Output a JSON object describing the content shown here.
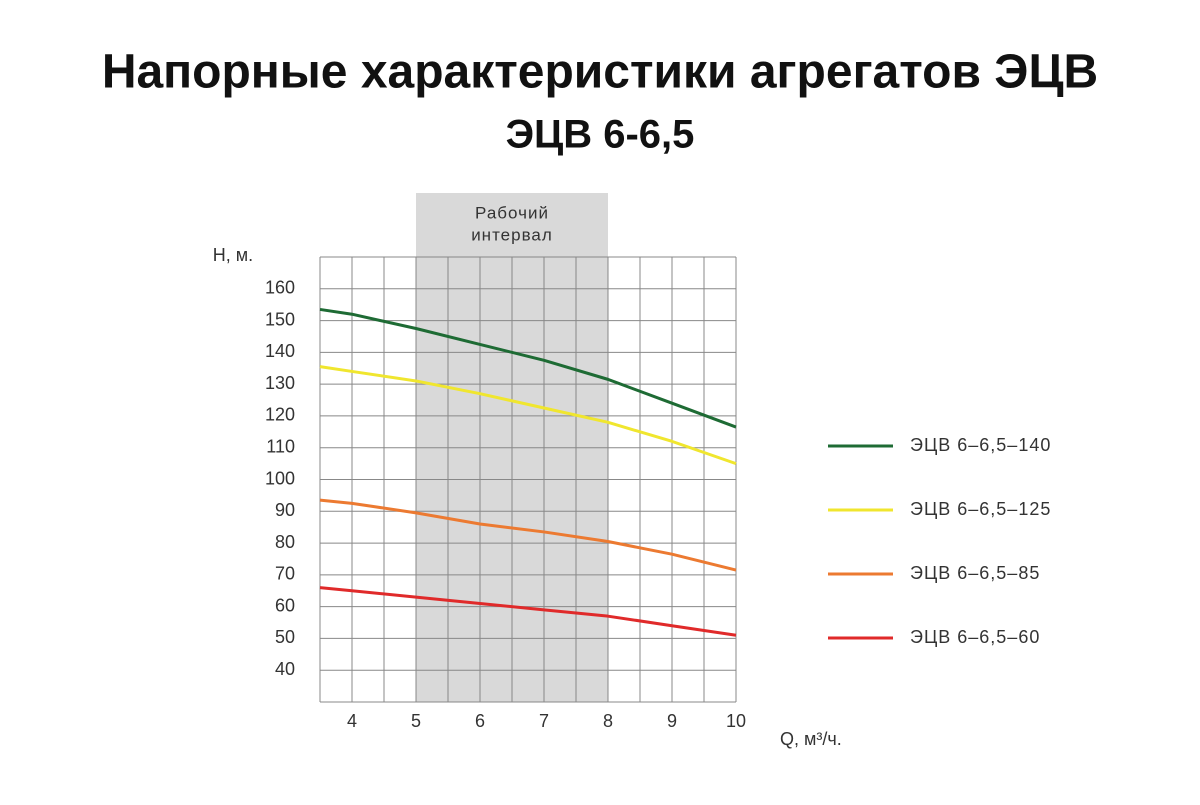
{
  "chart_data": {
    "type": "line",
    "title": "Напорные характеристики агрегатов ЭЦВ",
    "subtitle": "ЭЦВ 6-6,5",
    "y_label": "H, м.",
    "x_label": "Q, м³/ч.",
    "x": [
      3.5,
      4,
      5,
      6,
      7,
      8,
      9,
      10
    ],
    "series": [
      {
        "name": "ЭЦВ 6–6,5–140",
        "color": "#1e6b34",
        "values": [
          153.5,
          152,
          147.5,
          142.5,
          137.5,
          131.5,
          124,
          116.5
        ]
      },
      {
        "name": "ЭЦВ 6–6,5–125",
        "color": "#f0e62e",
        "values": [
          135.5,
          134,
          131,
          127,
          122.5,
          118,
          112,
          105
        ]
      },
      {
        "name": "ЭЦВ 6–6,5–85",
        "color": "#ec7a31",
        "values": [
          93.5,
          92.5,
          89.5,
          86,
          83.5,
          80.5,
          76.5,
          71.5
        ]
      },
      {
        "name": "ЭЦВ 6–6,5–60",
        "color": "#e02a2a",
        "values": [
          66,
          65,
          63,
          61,
          59,
          57,
          54,
          51
        ]
      }
    ],
    "xlim": [
      3.5,
      10
    ],
    "ylim": [
      30,
      170
    ],
    "xticks": [
      4,
      5,
      6,
      7,
      8,
      9,
      10
    ],
    "yticks": [
      40,
      50,
      60,
      70,
      80,
      90,
      100,
      110,
      120,
      130,
      140,
      150,
      160
    ],
    "x_grid": [
      3.5,
      4,
      4.5,
      5,
      5.5,
      6,
      6.5,
      7,
      7.5,
      8,
      8.5,
      9,
      9.5,
      10
    ],
    "y_grid": [
      30,
      40,
      50,
      60,
      70,
      80,
      90,
      100,
      110,
      120,
      130,
      140,
      150,
      160,
      170
    ],
    "working_interval": {
      "label": [
        "Рабочий",
        "интервал"
      ],
      "range": [
        5,
        8
      ]
    },
    "legend": "right"
  }
}
